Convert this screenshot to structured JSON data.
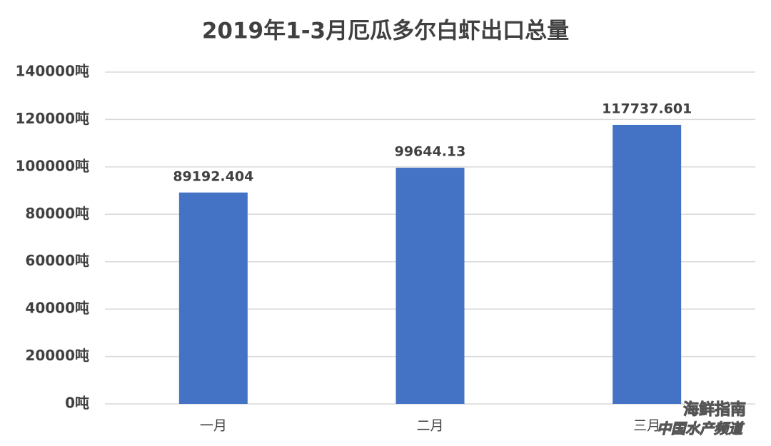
{
  "chart_data": {
    "type": "bar",
    "title": "2019年1-3月厄瓜多尔白虾出口总量",
    "categories": [
      "一月",
      "二月",
      "三月"
    ],
    "values": [
      89192.404,
      99644.13,
      117737.601
    ],
    "color": "#4472c4",
    "ylim": [
      0,
      140000
    ],
    "yticks": [
      {
        "value": 0,
        "label": "0吨"
      },
      {
        "value": 20000,
        "label": "20000吨"
      },
      {
        "value": 40000,
        "label": "40000吨"
      },
      {
        "value": 60000,
        "label": "60000吨"
      },
      {
        "value": 80000,
        "label": "80000吨"
      },
      {
        "value": 100000,
        "label": "100000吨"
      },
      {
        "value": 120000,
        "label": "120000吨"
      },
      {
        "value": 140000,
        "label": "140000吨"
      }
    ],
    "grid": true
  },
  "watermark": [
    "海鲜指南",
    "中国水产频道"
  ]
}
